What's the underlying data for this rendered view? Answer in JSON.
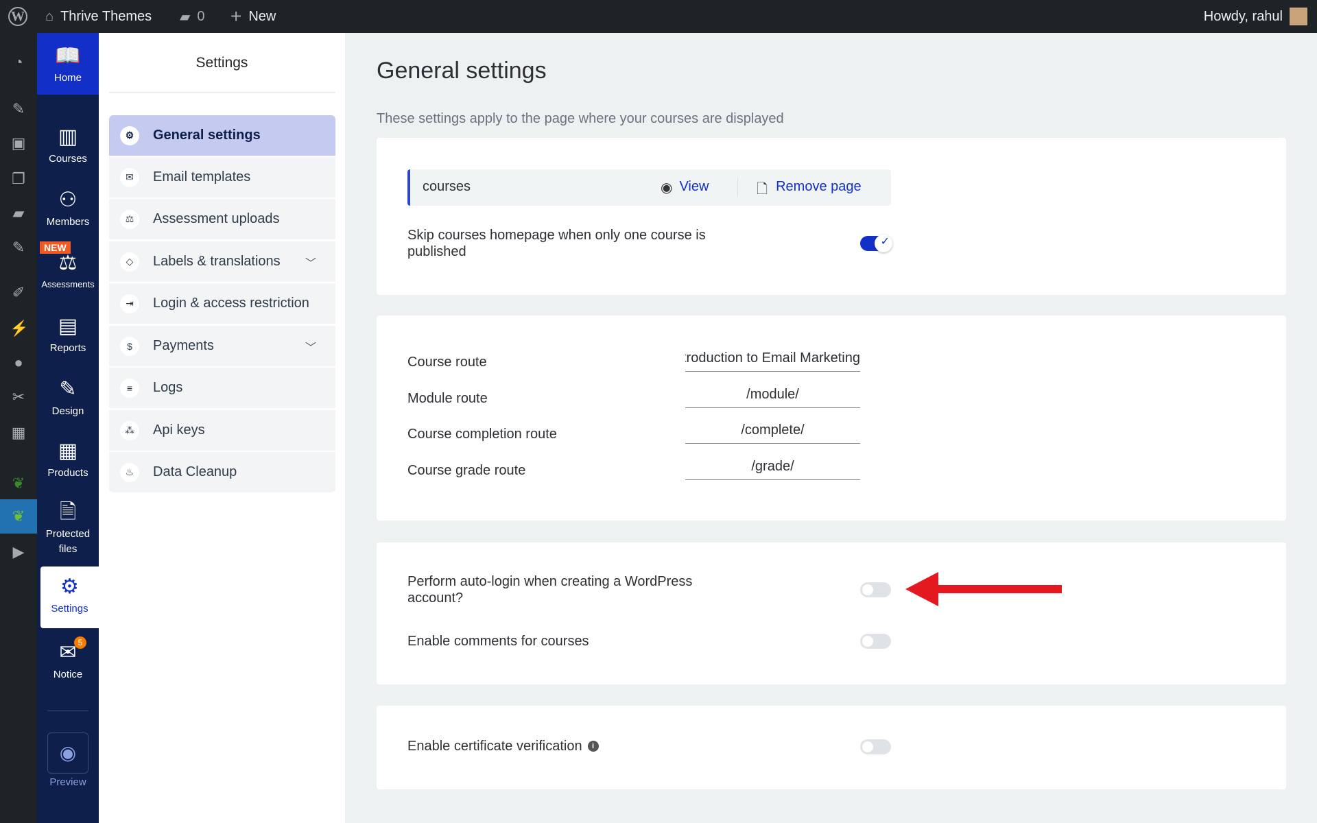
{
  "topbar": {
    "site": "Thrive Themes",
    "comments": "0",
    "new": "New",
    "greeting": "Howdy, rahul"
  },
  "thrive_nav": [
    {
      "label": "Home"
    },
    {
      "label": "Courses"
    },
    {
      "label": "Members"
    },
    {
      "label": "Assessments",
      "badge": "NEW"
    },
    {
      "label": "Reports"
    },
    {
      "label": "Design"
    },
    {
      "label": "Products"
    },
    {
      "label": "Protected files"
    },
    {
      "label": "Settings"
    },
    {
      "label": "Notice",
      "badge": "5"
    },
    {
      "label": "Preview"
    }
  ],
  "settings_panel": {
    "title": "Settings",
    "items": [
      {
        "label": "General settings",
        "active": true
      },
      {
        "label": "Email templates"
      },
      {
        "label": "Assessment uploads"
      },
      {
        "label": "Labels & translations",
        "expandable": true
      },
      {
        "label": "Login & access restriction"
      },
      {
        "label": "Payments",
        "expandable": true
      },
      {
        "label": "Logs"
      },
      {
        "label": "Api keys"
      },
      {
        "label": "Data Cleanup"
      }
    ]
  },
  "main": {
    "title": "General settings",
    "subtitle": "These settings apply to the page where your courses are displayed",
    "page": {
      "name": "courses",
      "view": "View",
      "remove": "Remove page"
    },
    "skip_homepage": {
      "label": "Skip courses homepage when only one course is published",
      "enabled": true
    },
    "routes": [
      {
        "label": "Course route",
        "value": "Introduction to Email Marketing"
      },
      {
        "label": "Module route",
        "value": "/module/"
      },
      {
        "label": "Course completion route",
        "value": "/complete/"
      },
      {
        "label": "Course grade route",
        "value": "/grade/"
      }
    ],
    "auto_login": {
      "label": "Perform auto-login when creating a WordPress account?",
      "enabled": false
    },
    "comments": {
      "label": "Enable comments for courses",
      "enabled": false
    },
    "certificate": {
      "label": "Enable certificate verification",
      "enabled": false
    }
  },
  "colors": {
    "accent": "#1230c7",
    "sidebar": "#0f1f4b",
    "arrow": "#e3191f",
    "new_badge": "#f15a22"
  }
}
